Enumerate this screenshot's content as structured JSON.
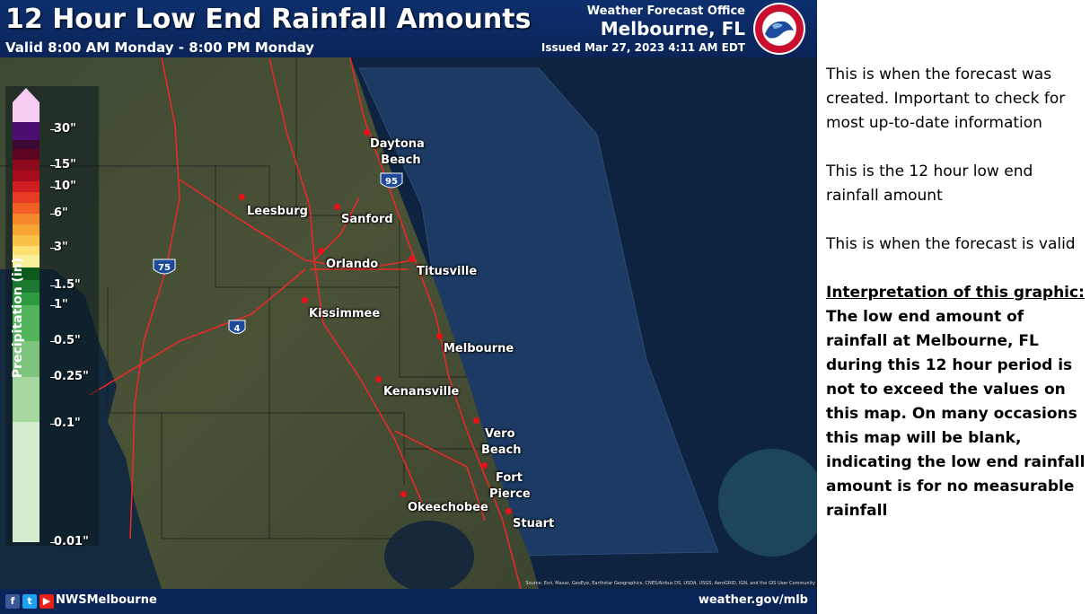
{
  "header": {
    "title": "12 Hour Low End Rainfall Amounts",
    "valid": "Valid 8:00 AM Monday - 8:00 PM Monday",
    "wfo_label": "Weather Forecast Office",
    "office": "Melbourne, FL",
    "issued": "Issued Mar 27, 2023 4:11 AM EDT",
    "logo_text": "NATIONAL WEATHER SERVICE"
  },
  "legend": {
    "title": "Precipitation (in)",
    "labels": [
      "30\"",
      "15\"",
      "10\"",
      "6\"",
      "3\"",
      "1.5\"",
      "1\"",
      "0.5\"",
      "0.25\"",
      "0.1\"",
      "0.01\""
    ]
  },
  "cities": [
    {
      "name": "Daytona",
      "name2": "Beach"
    },
    {
      "name": "Leesburg"
    },
    {
      "name": "Sanford"
    },
    {
      "name": "Orlando"
    },
    {
      "name": "Titusville"
    },
    {
      "name": "Kissimmee"
    },
    {
      "name": "Melbourne"
    },
    {
      "name": "Kenansville"
    },
    {
      "name": "Vero",
      "name2": "Beach"
    },
    {
      "name": "Fort",
      "name2": "Pierce"
    },
    {
      "name": "Okeechobee"
    },
    {
      "name": "Stuart"
    }
  ],
  "highways": [
    "95",
    "75",
    "4"
  ],
  "source": "Source: Esri, Maxar, GeoEye, Earthstar Geographics, CNES/Airbus DS, USDA, USGS, AeroGRID, IGN, and the GIS User Community",
  "footer": {
    "handle": "NWSMelbourne",
    "site": "weather.gov/mlb",
    "social_icons": [
      "facebook-icon",
      "twitter-icon",
      "youtube-icon"
    ]
  },
  "notes": {
    "issued_note": "This is when the forecast was created. Important to check for most up-to-date information",
    "amount_note": "This is the 12 hour low end rainfall amount",
    "valid_note": "This is when the forecast is valid",
    "interp_heading": "Interpretation of this graphic:",
    "interp_body": "The low end amount of rainfall at Melbourne, FL during this 12 hour period is not to exceed the values on this map. On many occasions this map will be blank, indicating the low end rainfall amount is for no measurable rainfall"
  }
}
